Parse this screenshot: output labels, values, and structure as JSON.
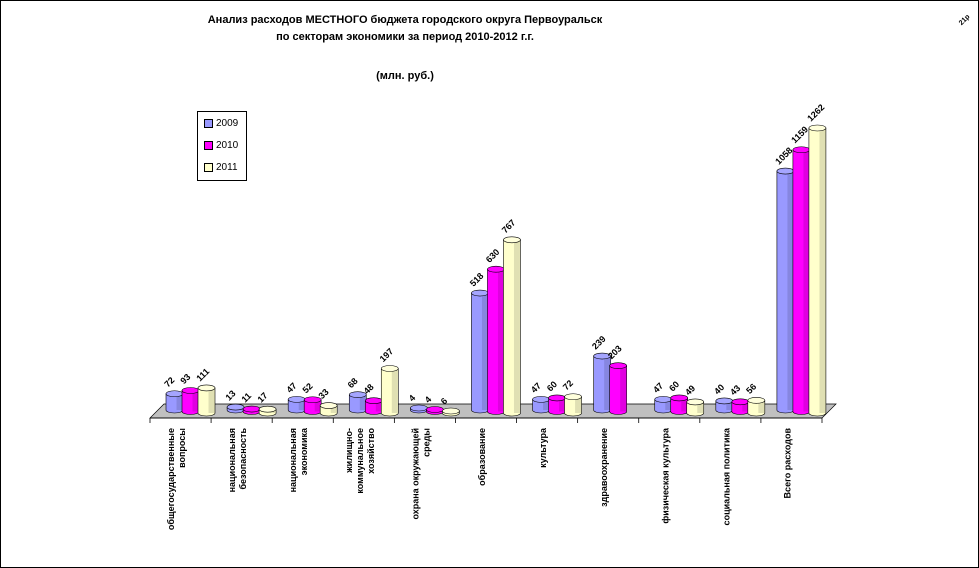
{
  "chart_data": {
    "type": "bar",
    "title": "Анализ расходов   МЕСТНОГО  бюджета  городского округа Первоуральск",
    "title_line2": "по секторам экономики за  период  2010-2012 г.г.",
    "subtitle": "(млн. руб.)",
    "corner_text": "21р",
    "legend_position": "top-left",
    "categories": [
      [
        "общегосударственные",
        "вопросы"
      ],
      [
        "национальная",
        "безопасность"
      ],
      [
        "национальная",
        "экономика"
      ],
      [
        "жилищно-",
        "коммунальное",
        "хозяйство"
      ],
      [
        "охрана окружающей",
        "среды"
      ],
      [
        "образование"
      ],
      [
        "культура"
      ],
      [
        "здравоохранение"
      ],
      [
        "физическая культура"
      ],
      [
        "социальная политика"
      ],
      [
        "Всего расходов"
      ]
    ],
    "series": [
      {
        "name": "2009",
        "color": "#9999ff",
        "values": [
          72,
          13,
          47,
          68,
          4,
          518,
          47,
          239,
          47,
          40,
          1058
        ]
      },
      {
        "name": "2010",
        "color": "#ff00ff",
        "values": [
          93,
          11,
          52,
          48,
          4,
          630,
          60,
          203,
          60,
          43,
          1159
        ]
      },
      {
        "name": "2011",
        "color": "#ffffcc",
        "values": [
          111,
          17,
          33,
          197,
          6,
          767,
          72,
          null,
          49,
          56,
          1262
        ]
      }
    ],
    "ylim": [
      0,
      1300
    ],
    "grid": false
  }
}
